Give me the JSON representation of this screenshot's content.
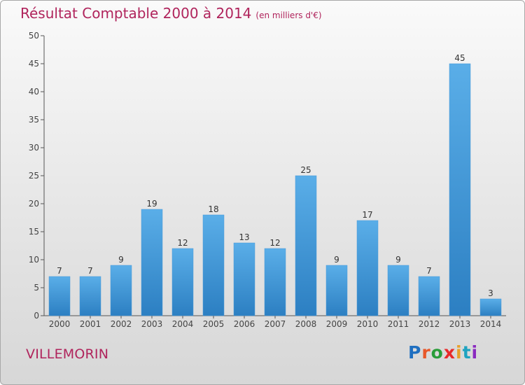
{
  "header": {
    "title": "Résultat Comptable 2000 à 2014",
    "subtitle": "(en milliers d'€)"
  },
  "footer": {
    "commune": "VILLEMORIN",
    "logo_text": "Proxiti"
  },
  "colors": {
    "title": "#b0245c",
    "bar_top": "#5aaee8",
    "bar_bottom": "#2c7fc2",
    "axis": "#555555"
  },
  "chart_data": {
    "type": "bar",
    "title": "Résultat Comptable 2000 à 2014",
    "xlabel": "",
    "ylabel": "(en milliers d'€)",
    "ylim": [
      0,
      50
    ],
    "yticks": [
      0,
      5,
      10,
      15,
      20,
      25,
      30,
      35,
      40,
      45,
      50
    ],
    "grid": false,
    "categories": [
      "2000",
      "2001",
      "2002",
      "2003",
      "2004",
      "2005",
      "2006",
      "2007",
      "2008",
      "2009",
      "2010",
      "2011",
      "2012",
      "2013",
      "2014"
    ],
    "values": [
      7,
      7,
      9,
      19,
      12,
      18,
      13,
      12,
      25,
      9,
      17,
      9,
      7,
      45,
      3
    ]
  }
}
